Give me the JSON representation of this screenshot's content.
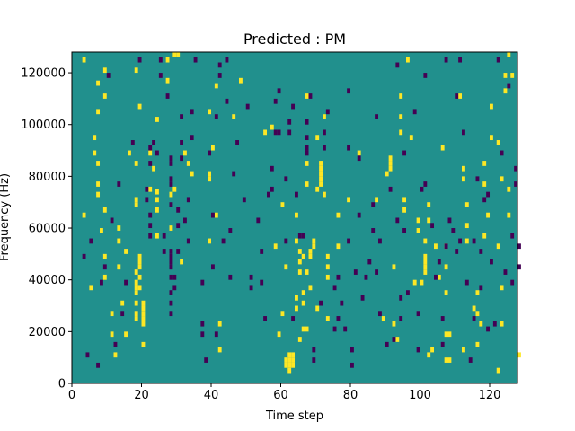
{
  "chart_data": {
    "type": "heatmap",
    "title": "Predicted : PM",
    "xlabel": "Time step",
    "ylabel": "Frequency (Hz)",
    "xlim": [
      0,
      128
    ],
    "ylim": [
      0,
      128000
    ],
    "x_ticks": [
      0,
      20,
      40,
      60,
      80,
      100,
      120
    ],
    "y_ticks": [
      0,
      20000,
      40000,
      60000,
      80000,
      100000,
      120000
    ],
    "x_tick_labels": [
      "0",
      "20",
      "40",
      "60",
      "80",
      "100",
      "120"
    ],
    "y_tick_labels": [
      "0",
      "20000",
      "40000",
      "60000",
      "80000",
      "100000",
      "120000"
    ],
    "bin_height_hz": 2000,
    "colormap": {
      "background": "#21908d",
      "high": "#fde725",
      "low": "#440154"
    },
    "background_value": 0,
    "high_value": 1,
    "low_value": -1,
    "high_cells": [
      [
        3,
        64
      ],
      [
        3,
        124
      ],
      [
        5,
        36
      ],
      [
        7,
        115
      ],
      [
        9,
        120
      ],
      [
        9,
        110
      ],
      [
        7,
        104
      ],
      [
        6,
        94
      ],
      [
        6,
        88
      ],
      [
        7,
        84
      ],
      [
        7,
        76
      ],
      [
        7,
        72
      ],
      [
        9,
        66
      ],
      [
        8,
        58
      ],
      [
        9,
        48
      ],
      [
        9,
        40
      ],
      [
        11,
        26
      ],
      [
        11,
        18
      ],
      [
        12,
        10
      ],
      [
        13,
        59
      ],
      [
        13,
        54
      ],
      [
        13,
        44
      ],
      [
        14,
        30
      ],
      [
        15,
        50
      ],
      [
        15,
        18
      ],
      [
        18,
        120
      ],
      [
        19,
        106
      ],
      [
        16,
        88
      ],
      [
        18,
        84
      ],
      [
        18,
        70
      ],
      [
        18,
        68
      ],
      [
        18,
        42
      ],
      [
        18,
        38
      ],
      [
        18,
        36
      ],
      [
        18,
        34
      ],
      [
        18,
        30
      ],
      [
        18,
        26
      ],
      [
        18,
        24
      ],
      [
        19,
        48
      ],
      [
        19,
        46
      ],
      [
        19,
        44
      ],
      [
        19,
        40
      ],
      [
        19,
        36
      ],
      [
        20,
        30
      ],
      [
        20,
        28
      ],
      [
        20,
        26
      ],
      [
        20,
        24
      ],
      [
        20,
        22
      ],
      [
        20,
        14
      ],
      [
        22,
        88
      ],
      [
        22,
        74
      ],
      [
        23,
        82
      ],
      [
        24,
        101
      ],
      [
        24,
        73
      ],
      [
        24,
        70
      ],
      [
        24,
        66
      ],
      [
        24,
        56
      ],
      [
        27,
        124
      ],
      [
        27,
        116
      ],
      [
        28,
        72
      ],
      [
        28,
        59
      ],
      [
        29,
        74
      ],
      [
        29,
        126
      ],
      [
        30,
        126
      ],
      [
        31,
        46
      ],
      [
        32,
        88
      ],
      [
        33,
        84
      ],
      [
        34,
        80
      ],
      [
        39,
        104
      ],
      [
        40,
        90
      ],
      [
        39,
        80
      ],
      [
        39,
        78
      ],
      [
        39,
        54
      ],
      [
        41,
        64
      ],
      [
        41,
        114
      ],
      [
        42,
        22
      ],
      [
        42,
        12
      ],
      [
        46,
        102
      ],
      [
        48,
        116
      ],
      [
        55,
        96
      ],
      [
        57,
        98
      ],
      [
        58,
        52
      ],
      [
        59,
        18
      ],
      [
        60,
        68
      ],
      [
        60,
        26
      ],
      [
        61,
        44
      ],
      [
        61,
        8
      ],
      [
        61,
        6
      ],
      [
        62,
        10
      ],
      [
        62,
        8
      ],
      [
        62,
        4
      ],
      [
        63,
        10
      ],
      [
        63,
        8
      ],
      [
        62,
        6
      ],
      [
        63,
        6
      ],
      [
        64,
        64
      ],
      [
        64,
        54
      ],
      [
        64,
        32
      ],
      [
        64,
        28
      ],
      [
        65,
        50
      ],
      [
        65,
        46
      ],
      [
        65,
        42
      ],
      [
        65,
        16
      ],
      [
        66,
        48
      ],
      [
        67,
        84
      ],
      [
        67,
        76
      ],
      [
        66,
        34
      ],
      [
        66,
        30
      ],
      [
        66,
        20
      ],
      [
        67,
        20
      ],
      [
        67,
        42
      ],
      [
        67,
        110
      ],
      [
        68,
        50
      ],
      [
        68,
        48
      ],
      [
        68,
        36
      ],
      [
        69,
        54
      ],
      [
        69,
        52
      ],
      [
        70,
        94
      ],
      [
        70,
        28
      ],
      [
        70,
        74
      ],
      [
        71,
        84
      ],
      [
        71,
        82
      ],
      [
        71,
        80
      ],
      [
        71,
        78
      ],
      [
        71,
        76
      ],
      [
        72,
        102
      ],
      [
        72,
        72
      ],
      [
        73,
        44
      ],
      [
        73,
        40
      ],
      [
        73,
        48
      ],
      [
        73,
        24
      ],
      [
        76,
        64
      ],
      [
        76,
        52
      ],
      [
        79,
        70
      ],
      [
        82,
        88
      ],
      [
        87,
        70
      ],
      [
        89,
        24
      ],
      [
        90,
        80
      ],
      [
        91,
        82
      ],
      [
        91,
        84
      ],
      [
        91,
        86
      ],
      [
        92,
        22
      ],
      [
        92,
        44
      ],
      [
        93,
        16
      ],
      [
        94,
        102
      ],
      [
        94,
        110
      ],
      [
        94,
        96
      ],
      [
        95,
        66
      ],
      [
        95,
        70
      ],
      [
        96,
        124
      ],
      [
        97,
        94
      ],
      [
        98,
        38
      ],
      [
        99,
        62
      ],
      [
        99,
        58
      ],
      [
        100,
        38
      ],
      [
        101,
        48
      ],
      [
        101,
        46
      ],
      [
        101,
        44
      ],
      [
        101,
        42
      ],
      [
        101,
        54
      ],
      [
        102,
        62
      ],
      [
        102,
        68
      ],
      [
        102,
        10
      ],
      [
        103,
        12
      ],
      [
        104,
        52
      ],
      [
        105,
        40
      ],
      [
        106,
        90
      ],
      [
        107,
        52
      ],
      [
        107,
        44
      ],
      [
        107,
        34
      ],
      [
        107,
        8
      ],
      [
        108,
        8
      ],
      [
        107,
        18
      ],
      [
        108,
        18
      ],
      [
        111,
        110
      ],
      [
        112,
        82
      ],
      [
        112,
        78
      ],
      [
        112,
        12
      ],
      [
        113,
        68
      ],
      [
        113,
        60
      ],
      [
        113,
        54
      ],
      [
        115,
        28
      ],
      [
        116,
        34
      ],
      [
        116,
        26
      ],
      [
        116,
        14
      ],
      [
        117,
        22
      ],
      [
        118,
        84
      ],
      [
        118,
        76
      ],
      [
        118,
        56
      ],
      [
        119,
        64
      ],
      [
        120,
        106
      ],
      [
        120,
        94
      ],
      [
        122,
        92
      ],
      [
        122,
        52
      ],
      [
        122,
        4
      ],
      [
        123,
        22
      ],
      [
        123,
        36
      ],
      [
        123,
        78
      ],
      [
        124,
        112
      ],
      [
        124,
        118
      ],
      [
        125,
        126
      ],
      [
        125,
        64
      ],
      [
        125,
        74
      ],
      [
        126,
        118
      ],
      [
        128,
        10
      ]
    ],
    "low_cells": [
      [
        3,
        48
      ],
      [
        4,
        10
      ],
      [
        5,
        54
      ],
      [
        7,
        6
      ],
      [
        8,
        38
      ],
      [
        9,
        44
      ],
      [
        10,
        118
      ],
      [
        11,
        62
      ],
      [
        12,
        14
      ],
      [
        13,
        76
      ],
      [
        14,
        26
      ],
      [
        15,
        38
      ],
      [
        17,
        92
      ],
      [
        19,
        124
      ],
      [
        21,
        70
      ],
      [
        21,
        74
      ],
      [
        22,
        56
      ],
      [
        22,
        60
      ],
      [
        22,
        64
      ],
      [
        22,
        84
      ],
      [
        22,
        90
      ],
      [
        23,
        92
      ],
      [
        24,
        88
      ],
      [
        25,
        118
      ],
      [
        25,
        124
      ],
      [
        26,
        50
      ],
      [
        26,
        56
      ],
      [
        27,
        110
      ],
      [
        28,
        26
      ],
      [
        28,
        30
      ],
      [
        28,
        34
      ],
      [
        28,
        40
      ],
      [
        28,
        44
      ],
      [
        28,
        46
      ],
      [
        28,
        48
      ],
      [
        28,
        50
      ],
      [
        28,
        68
      ],
      [
        28,
        76
      ],
      [
        28,
        78
      ],
      [
        28,
        84
      ],
      [
        28,
        86
      ],
      [
        29,
        36
      ],
      [
        29,
        40
      ],
      [
        30,
        50
      ],
      [
        30,
        60
      ],
      [
        30,
        66
      ],
      [
        31,
        86
      ],
      [
        31,
        92
      ],
      [
        31,
        102
      ],
      [
        32,
        62
      ],
      [
        33,
        54
      ],
      [
        33,
        70
      ],
      [
        34,
        94
      ],
      [
        34,
        104
      ],
      [
        35,
        124
      ],
      [
        37,
        18
      ],
      [
        37,
        22
      ],
      [
        37,
        38
      ],
      [
        38,
        8
      ],
      [
        39,
        88
      ],
      [
        40,
        44
      ],
      [
        40,
        64
      ],
      [
        41,
        18
      ],
      [
        41,
        102
      ],
      [
        42,
        118
      ],
      [
        42,
        122
      ],
      [
        43,
        54
      ],
      [
        44,
        108
      ],
      [
        44,
        124
      ],
      [
        45,
        40
      ],
      [
        45,
        58
      ],
      [
        46,
        80
      ],
      [
        47,
        92
      ],
      [
        49,
        70
      ],
      [
        50,
        106
      ],
      [
        51,
        36
      ],
      [
        51,
        40
      ],
      [
        53,
        62
      ],
      [
        54,
        38
      ],
      [
        54,
        50
      ],
      [
        55,
        24
      ],
      [
        56,
        72
      ],
      [
        57,
        74
      ],
      [
        57,
        82
      ],
      [
        58,
        96
      ],
      [
        58,
        108
      ],
      [
        59,
        96
      ],
      [
        59,
        112
      ],
      [
        61,
        78
      ],
      [
        61,
        54
      ],
      [
        62,
        96
      ],
      [
        62,
        100
      ],
      [
        63,
        106
      ],
      [
        63,
        24
      ],
      [
        64,
        72
      ],
      [
        65,
        56
      ],
      [
        66,
        56
      ],
      [
        67,
        88
      ],
      [
        67,
        90
      ],
      [
        67,
        94
      ],
      [
        67,
        100
      ],
      [
        68,
        110
      ],
      [
        69,
        8
      ],
      [
        69,
        12
      ],
      [
        71,
        30
      ],
      [
        72,
        90
      ],
      [
        72,
        96
      ],
      [
        73,
        104
      ],
      [
        75,
        20
      ],
      [
        75,
        36
      ],
      [
        76,
        24
      ],
      [
        76,
        40
      ],
      [
        77,
        30
      ],
      [
        78,
        20
      ],
      [
        79,
        112
      ],
      [
        79,
        90
      ],
      [
        79,
        54
      ],
      [
        80,
        6
      ],
      [
        80,
        12
      ],
      [
        81,
        42
      ],
      [
        82,
        64
      ],
      [
        82,
        86
      ],
      [
        83,
        32
      ],
      [
        84,
        40
      ],
      [
        85,
        46
      ],
      [
        86,
        68
      ],
      [
        86,
        58
      ],
      [
        87,
        42
      ],
      [
        87,
        102
      ],
      [
        88,
        26
      ],
      [
        88,
        54
      ],
      [
        90,
        14
      ],
      [
        91,
        74
      ],
      [
        92,
        16
      ],
      [
        93,
        122
      ],
      [
        93,
        62
      ],
      [
        94,
        24
      ],
      [
        94,
        32
      ],
      [
        95,
        58
      ],
      [
        95,
        88
      ],
      [
        96,
        34
      ],
      [
        98,
        104
      ],
      [
        99,
        12
      ],
      [
        99,
        26
      ],
      [
        100,
        74
      ],
      [
        101,
        76
      ],
      [
        101,
        118
      ],
      [
        103,
        60
      ],
      [
        104,
        40
      ],
      [
        105,
        46
      ],
      [
        106,
        14
      ],
      [
        106,
        24
      ],
      [
        107,
        52
      ],
      [
        107,
        124
      ],
      [
        108,
        62
      ],
      [
        109,
        58
      ],
      [
        110,
        50
      ],
      [
        110,
        110
      ],
      [
        111,
        54
      ],
      [
        111,
        124
      ],
      [
        112,
        96
      ],
      [
        113,
        38
      ],
      [
        114,
        8
      ],
      [
        115,
        24
      ],
      [
        115,
        54
      ],
      [
        116,
        78
      ],
      [
        117,
        36
      ],
      [
        117,
        50
      ],
      [
        118,
        70
      ],
      [
        119,
        72
      ],
      [
        119,
        20
      ],
      [
        120,
        46
      ],
      [
        121,
        22
      ],
      [
        122,
        124
      ],
      [
        123,
        88
      ],
      [
        124,
        42
      ],
      [
        125,
        114
      ],
      [
        126,
        38
      ],
      [
        126,
        56
      ],
      [
        127,
        76
      ],
      [
        127,
        82
      ],
      [
        128,
        44
      ],
      [
        128,
        52
      ]
    ]
  }
}
